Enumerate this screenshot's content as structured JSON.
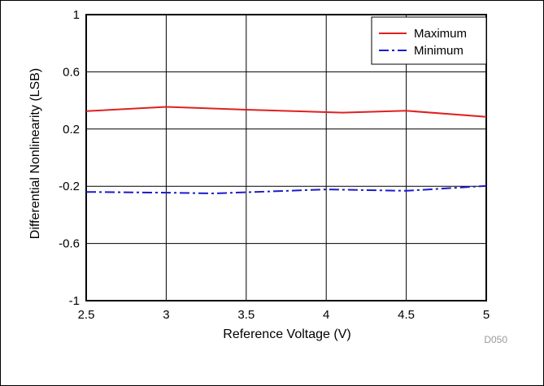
{
  "chart_data": {
    "type": "line",
    "xlabel": "Reference Voltage (V)",
    "ylabel": "Differential Nonlinearity (LSB)",
    "xlim": [
      2.5,
      5
    ],
    "ylim": [
      -1,
      1
    ],
    "x_ticks": [
      "2.5",
      "3",
      "3.5",
      "4",
      "4.5",
      "5"
    ],
    "y_ticks": [
      "1",
      "0.6",
      "0.2",
      "-0.2",
      "-0.6",
      "-1"
    ],
    "grid": true,
    "legend_position": "top-right",
    "figure_code": "D050",
    "series": [
      {
        "name": "Maximum",
        "color": "#e02020",
        "style": "solid",
        "x": [
          2.5,
          3.0,
          3.5,
          4.1,
          4.5,
          5.0
        ],
        "y": [
          0.325,
          0.355,
          0.335,
          0.315,
          0.328,
          0.285
        ]
      },
      {
        "name": "Minimum",
        "color": "#1a1ad0",
        "style": "dashdot",
        "x": [
          2.5,
          3.0,
          3.3,
          3.5,
          4.0,
          4.5,
          5.0
        ],
        "y": [
          -0.24,
          -0.245,
          -0.25,
          -0.242,
          -0.222,
          -0.232,
          -0.198
        ]
      }
    ]
  }
}
